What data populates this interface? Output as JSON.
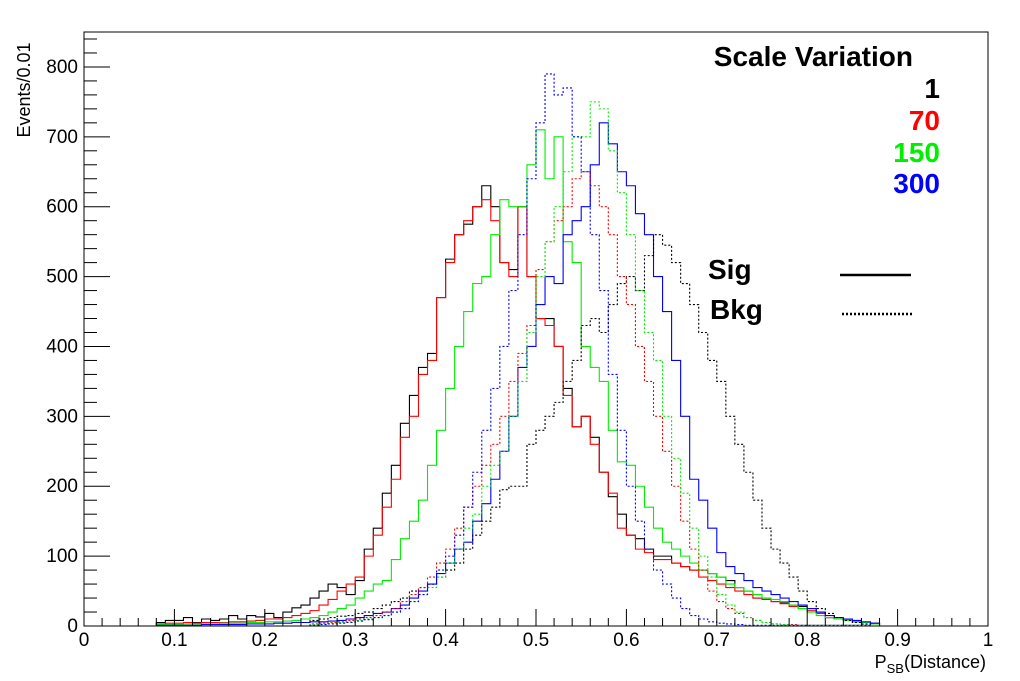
{
  "chart_data": {
    "type": "histogram",
    "xlabel_main": "P",
    "xlabel_sub": "SB",
    "xlabel_rest": "(Distance)",
    "ylabel": "Events/0.01",
    "xlim": [
      0,
      1
    ],
    "ylim": [
      0,
      850
    ],
    "x_ticks": [
      "0",
      "0.1",
      "0.2",
      "0.3",
      "0.4",
      "0.5",
      "0.6",
      "0.7",
      "0.8",
      "0.9",
      "1"
    ],
    "y_ticks": [
      "0",
      "100",
      "200",
      "300",
      "400",
      "500",
      "600",
      "700",
      "800"
    ],
    "bin_width": 0.01,
    "grid": false,
    "legend": {
      "placement": "top-right",
      "title": "Scale Variation",
      "entries": [
        {
          "label": "1",
          "color": "#000000"
        },
        {
          "label": "70",
          "color": "#ff0000"
        },
        {
          "label": "150",
          "color": "#00ee00"
        },
        {
          "label": "300",
          "color": "#0000ff"
        }
      ],
      "styles": [
        {
          "label": "Sig",
          "dash": "solid"
        },
        {
          "label": "Bkg",
          "dash": "dotted"
        }
      ]
    },
    "series": [
      {
        "scale": "1",
        "kind": "Sig",
        "color": "#000000",
        "dash": "solid",
        "start": 0.08,
        "values": [
          5,
          8,
          8,
          12,
          5,
          10,
          8,
          10,
          15,
          10,
          15,
          13,
          18,
          12,
          20,
          26,
          30,
          40,
          50,
          60,
          55,
          45,
          65,
          110,
          140,
          190,
          230,
          290,
          330,
          370,
          390,
          470,
          525,
          560,
          575,
          600,
          630,
          600,
          520,
          510,
          600,
          500,
          440,
          440,
          400,
          340,
          285,
          300,
          270,
          220,
          185,
          160,
          130,
          125,
          110,
          100,
          100,
          90,
          85,
          80,
          80,
          75,
          70,
          65,
          55,
          50,
          40,
          38,
          35,
          33,
          30,
          28,
          25,
          20,
          12,
          10,
          8,
          6,
          5,
          4
        ]
      },
      {
        "scale": "70",
        "kind": "Sig",
        "color": "#ff0000",
        "dash": "solid",
        "start": 0.08,
        "values": [
          3,
          4,
          4,
          5,
          4,
          5,
          5,
          5,
          6,
          6,
          7,
          8,
          10,
          10,
          12,
          15,
          18,
          22,
          30,
          38,
          50,
          60,
          70,
          100,
          130,
          170,
          210,
          270,
          300,
          360,
          380,
          470,
          520,
          560,
          580,
          600,
          610,
          580,
          520,
          500,
          600,
          500,
          440,
          430,
          400,
          330,
          285,
          300,
          260,
          220,
          190,
          140,
          130,
          110,
          105,
          95,
          95,
          90,
          85,
          80,
          70,
          65,
          60,
          55,
          50,
          45,
          40,
          38,
          35,
          32,
          28,
          25,
          22,
          18,
          12,
          10,
          8,
          6,
          5,
          4
        ]
      },
      {
        "scale": "150",
        "kind": "Sig",
        "color": "#00ee00",
        "dash": "solid",
        "start": 0.08,
        "values": [
          2,
          2,
          2,
          3,
          3,
          3,
          3,
          4,
          4,
          4,
          5,
          5,
          6,
          6,
          7,
          8,
          10,
          12,
          15,
          20,
          25,
          30,
          40,
          50,
          60,
          65,
          95,
          125,
          150,
          180,
          230,
          280,
          340,
          400,
          450,
          490,
          500,
          560,
          610,
          600,
          600,
          660,
          710,
          640,
          700,
          550,
          520,
          400,
          370,
          350,
          280,
          235,
          230,
          200,
          170,
          140,
          120,
          110,
          100,
          90,
          80,
          75,
          70,
          60,
          55,
          50,
          45,
          40,
          38,
          35,
          30,
          25,
          20,
          15,
          12,
          10,
          8,
          6,
          5,
          3
        ]
      },
      {
        "scale": "300",
        "kind": "Sig",
        "color": "#0000ff",
        "dash": "solid",
        "start": 0.08,
        "values": [
          1,
          1,
          1,
          1,
          1,
          2,
          2,
          2,
          2,
          2,
          3,
          3,
          3,
          4,
          4,
          5,
          5,
          6,
          6,
          7,
          8,
          10,
          12,
          15,
          18,
          20,
          25,
          30,
          40,
          50,
          60,
          75,
          90,
          110,
          120,
          150,
          175,
          210,
          250,
          300,
          370,
          400,
          460,
          500,
          490,
          560,
          580,
          600,
          660,
          720,
          690,
          650,
          630,
          590,
          560,
          500,
          450,
          380,
          300,
          210,
          180,
          140,
          105,
          85,
          75,
          65,
          55,
          50,
          45,
          40,
          35,
          30,
          25,
          20,
          15,
          12,
          10,
          8,
          6,
          4
        ]
      },
      {
        "scale": "1",
        "kind": "Bkg",
        "color": "#000000",
        "dash": "dotted",
        "start": 0.25,
        "values": [
          8,
          10,
          12,
          14,
          15,
          18,
          20,
          25,
          30,
          35,
          40,
          50,
          55,
          60,
          70,
          80,
          90,
          110,
          130,
          150,
          170,
          195,
          200,
          200,
          260,
          280,
          300,
          320,
          350,
          380,
          430,
          440,
          420,
          460,
          490,
          500,
          480,
          530,
          560,
          545,
          520,
          490,
          460,
          420,
          380,
          350,
          300,
          260,
          220,
          180,
          140,
          110,
          90,
          70,
          50,
          35,
          25,
          18,
          12,
          8,
          5,
          3
        ]
      },
      {
        "scale": "70",
        "kind": "Bkg",
        "color": "#ff0000",
        "dash": "dotted",
        "start": 0.25,
        "values": [
          3,
          4,
          5,
          6,
          8,
          10,
          12,
          15,
          20,
          25,
          35,
          45,
          55,
          70,
          90,
          110,
          140,
          170,
          200,
          230,
          260,
          300,
          350,
          390,
          430,
          510,
          550,
          580,
          600,
          640,
          650,
          630,
          600,
          560,
          500,
          460,
          400,
          350,
          300,
          250,
          200,
          150,
          110,
          80,
          50,
          35,
          25,
          18,
          12,
          8,
          5,
          3,
          2,
          2,
          1,
          1,
          1,
          1,
          1,
          1,
          1,
          1
        ]
      },
      {
        "scale": "150",
        "kind": "Bkg",
        "color": "#00ee00",
        "dash": "dotted",
        "start": 0.25,
        "values": [
          2,
          3,
          4,
          5,
          6,
          8,
          10,
          12,
          15,
          20,
          25,
          35,
          45,
          55,
          70,
          90,
          110,
          140,
          160,
          200,
          230,
          250,
          300,
          350,
          420,
          500,
          550,
          600,
          650,
          700,
          700,
          750,
          740,
          680,
          620,
          560,
          480,
          420,
          380,
          300,
          240,
          190,
          140,
          100,
          70,
          45,
          30,
          20,
          12,
          8,
          5,
          3,
          2,
          1,
          1,
          1,
          1,
          1,
          1,
          1,
          1,
          1
        ]
      },
      {
        "scale": "300",
        "kind": "Bkg",
        "color": "#0000ff",
        "dash": "dotted",
        "start": 0.25,
        "values": [
          1,
          2,
          3,
          4,
          5,
          7,
          9,
          12,
          15,
          20,
          25,
          35,
          45,
          60,
          80,
          100,
          130,
          170,
          220,
          280,
          340,
          400,
          480,
          560,
          640,
          720,
          790,
          760,
          770,
          700,
          650,
          560,
          480,
          360,
          280,
          200,
          150,
          110,
          80,
          60,
          40,
          25,
          15,
          10,
          6,
          4,
          3,
          2,
          1,
          1,
          1,
          1,
          1,
          1,
          1,
          1,
          1,
          1,
          1,
          1,
          1,
          1
        ]
      }
    ]
  }
}
